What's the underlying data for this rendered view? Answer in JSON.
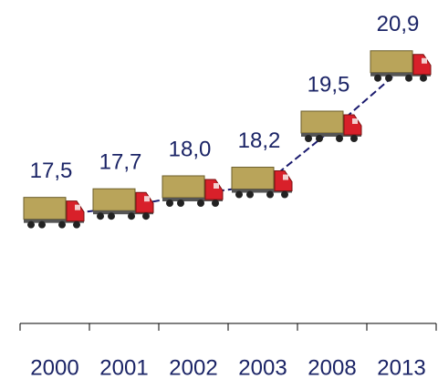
{
  "chart_data": {
    "type": "line",
    "categories": [
      "2000",
      "2001",
      "2002",
      "2003",
      "2008",
      "2013"
    ],
    "values": [
      17.5,
      17.7,
      18.0,
      18.2,
      19.5,
      20.9
    ],
    "value_labels": [
      "17,5",
      "17,7",
      "18,0",
      "18,2",
      "19,5",
      "20,9"
    ],
    "color": "#1a1a6e",
    "ylim": [
      15,
      22.5
    ]
  }
}
